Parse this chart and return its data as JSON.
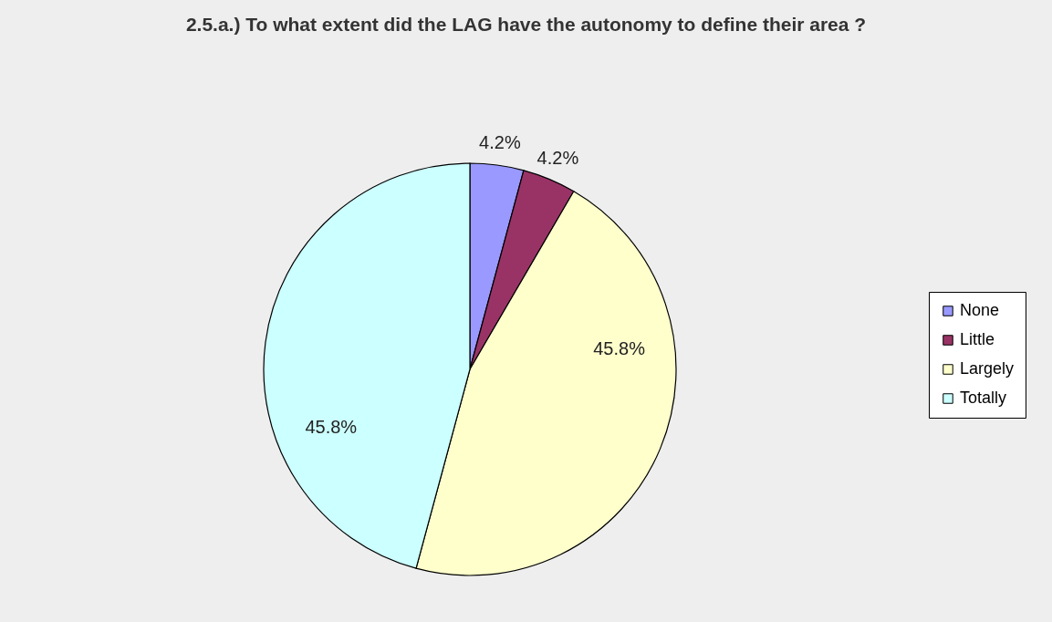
{
  "chart_data": {
    "type": "pie",
    "title": "2.5.a.) To what extent did the LAG have the autonomy to define their area ?",
    "categories": [
      "None",
      "Little",
      "Largely",
      "Totally"
    ],
    "values": [
      4.2,
      4.2,
      45.8,
      45.8
    ],
    "colors": [
      "#9999ff",
      "#993366",
      "#ffffcc",
      "#ccffff"
    ],
    "value_labels": [
      "4.2%",
      "4.2%",
      "45.8%",
      "45.8%"
    ],
    "legend": "right"
  }
}
